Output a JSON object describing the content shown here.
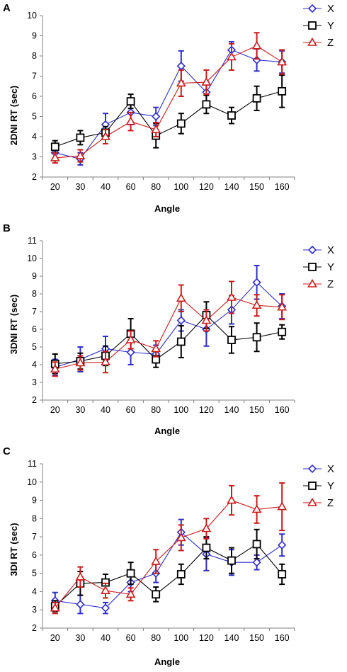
{
  "chart_data": [
    {
      "type": "line",
      "panel_label": "A",
      "xlabel": "Angle",
      "ylabel": "2DNI RT (sec)",
      "ylim": [
        2,
        10
      ],
      "yticks": [
        2,
        3,
        4,
        5,
        6,
        7,
        8,
        9,
        10
      ],
      "categories": [
        "20",
        "30",
        "40",
        "60",
        "80",
        "100",
        "120",
        "140",
        "150",
        "160"
      ],
      "legend_position": "top-right",
      "series": [
        {
          "name": "X",
          "color": "#2e2ecc",
          "marker": "diamond",
          "values": [
            3.2,
            2.9,
            4.6,
            5.2,
            5.0,
            7.5,
            6.2,
            8.3,
            7.8,
            7.7
          ],
          "errors": [
            0.3,
            0.3,
            0.55,
            0.6,
            0.45,
            0.75,
            0.5,
            0.4,
            0.55,
            0.55
          ]
        },
        {
          "name": "Y",
          "color": "#000000",
          "marker": "square",
          "values": [
            3.5,
            3.95,
            4.2,
            5.75,
            4.05,
            4.65,
            5.6,
            5.05,
            5.9,
            6.25
          ],
          "errors": [
            0.3,
            0.35,
            0.3,
            0.35,
            0.6,
            0.5,
            0.45,
            0.4,
            0.6,
            0.8
          ]
        },
        {
          "name": "Z",
          "color": "#cc1a1a",
          "marker": "triangle",
          "values": [
            2.95,
            3.05,
            4.0,
            4.75,
            4.35,
            6.65,
            6.7,
            7.95,
            8.5,
            7.7
          ],
          "errors": [
            0.25,
            0.3,
            0.35,
            0.45,
            0.35,
            0.65,
            0.6,
            0.65,
            0.65,
            0.6
          ]
        }
      ]
    },
    {
      "type": "line",
      "panel_label": "B",
      "xlabel": "Angle",
      "ylabel": "3DNI RT (sec)",
      "ylim": [
        2,
        11
      ],
      "yticks": [
        2,
        3,
        4,
        5,
        6,
        7,
        8,
        9,
        10,
        11
      ],
      "categories": [
        "20",
        "30",
        "40",
        "60",
        "80",
        "100",
        "120",
        "140",
        "150",
        "160"
      ],
      "legend_position": "top-right",
      "series": [
        {
          "name": "X",
          "color": "#2e2ecc",
          "marker": "diamond",
          "values": [
            3.85,
            4.3,
            4.9,
            4.7,
            4.6,
            6.5,
            6.0,
            7.1,
            8.65,
            7.3
          ],
          "errors": [
            0.45,
            0.7,
            0.7,
            0.7,
            0.5,
            0.6,
            0.95,
            0.8,
            0.95,
            0.7
          ]
        },
        {
          "name": "Y",
          "color": "#000000",
          "marker": "square",
          "values": [
            4.05,
            4.2,
            4.5,
            5.75,
            4.3,
            5.3,
            6.8,
            5.4,
            5.55,
            5.85
          ],
          "errors": [
            0.55,
            0.45,
            0.55,
            0.85,
            0.45,
            0.9,
            0.75,
            0.75,
            0.8,
            0.4
          ]
        },
        {
          "name": "Z",
          "color": "#cc1a1a",
          "marker": "triangle",
          "values": [
            3.75,
            4.1,
            4.15,
            5.4,
            4.9,
            7.75,
            6.5,
            7.8,
            7.35,
            7.25
          ],
          "errors": [
            0.4,
            0.4,
            0.6,
            0.5,
            0.45,
            0.75,
            0.6,
            0.9,
            0.6,
            0.7
          ]
        }
      ]
    },
    {
      "type": "line",
      "panel_label": "C",
      "xlabel": "Angle",
      "ylabel": "3DI RT (sec)",
      "ylim": [
        2,
        11
      ],
      "yticks": [
        2,
        3,
        4,
        5,
        6,
        7,
        8,
        9,
        10,
        11
      ],
      "categories": [
        "20",
        "30",
        "40",
        "60",
        "80",
        "100",
        "120",
        "140",
        "150",
        "160"
      ],
      "legend_position": "top-right",
      "series": [
        {
          "name": "X",
          "color": "#2e2ecc",
          "marker": "diamond",
          "values": [
            3.5,
            3.3,
            3.1,
            4.5,
            5.0,
            7.25,
            6.05,
            5.6,
            5.6,
            6.55
          ],
          "errors": [
            0.45,
            0.5,
            0.3,
            0.5,
            0.5,
            0.7,
            0.9,
            0.7,
            0.4,
            0.6
          ]
        },
        {
          "name": "Y",
          "color": "#000000",
          "marker": "square",
          "values": [
            3.2,
            4.45,
            4.5,
            5.0,
            3.85,
            4.95,
            6.4,
            5.7,
            6.6,
            4.95
          ],
          "errors": [
            0.3,
            0.65,
            0.45,
            0.6,
            0.4,
            0.55,
            0.6,
            0.7,
            0.8,
            0.55
          ]
        },
        {
          "name": "Z",
          "color": "#cc1a1a",
          "marker": "triangle",
          "values": [
            3.1,
            4.8,
            4.05,
            3.85,
            5.65,
            6.95,
            7.45,
            9.0,
            8.5,
            8.65
          ],
          "errors": [
            0.3,
            0.55,
            0.4,
            0.35,
            0.65,
            0.7,
            0.55,
            0.8,
            0.75,
            1.3
          ]
        }
      ]
    }
  ]
}
